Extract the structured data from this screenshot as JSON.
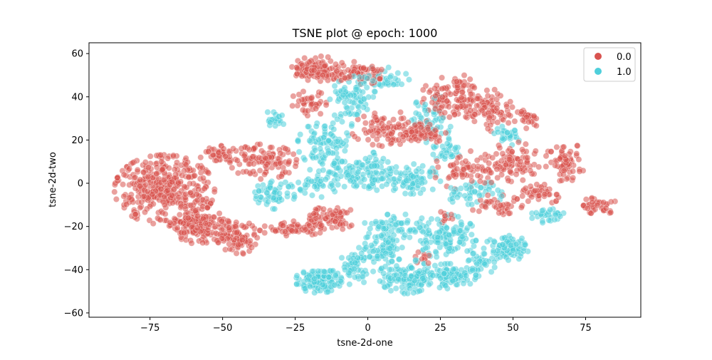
{
  "chart_data": {
    "type": "scatter",
    "title": "TSNE plot @ epoch: 1000",
    "xlabel": "tsne-2d-one",
    "ylabel": "tsne-2d-two",
    "xlim": [
      -96,
      94
    ],
    "ylim": [
      -62,
      65
    ],
    "xticks": [
      -75,
      -50,
      -25,
      0,
      25,
      50,
      75
    ],
    "yticks": [
      -60,
      -40,
      -20,
      0,
      20,
      40,
      60
    ],
    "xtick_labels": [
      "−75",
      "−50",
      "−25",
      "0",
      "25",
      "50",
      "75"
    ],
    "ytick_labels": [
      "−60",
      "−40",
      "−20",
      "0",
      "20",
      "40",
      "60"
    ],
    "legend": {
      "placement": "top-right",
      "entries": [
        "0.0",
        "1.0"
      ]
    },
    "colors": {
      "0.0": "#d9534f",
      "1.0": "#4fcfdb"
    },
    "point_alpha": 0.55,
    "series": [
      {
        "name": "0.0",
        "clusters": [
          {
            "cx": -70,
            "cy": -3,
            "rx": 15,
            "ry": 14,
            "n": 380
          },
          {
            "cx": -58,
            "cy": -20,
            "rx": 9,
            "ry": 7,
            "n": 150
          },
          {
            "cx": -45,
            "cy": -25,
            "rx": 6,
            "ry": 7,
            "n": 90
          },
          {
            "cx": -52,
            "cy": 14,
            "rx": 6,
            "ry": 3,
            "n": 40
          },
          {
            "cx": -36,
            "cy": 10,
            "rx": 10,
            "ry": 7,
            "n": 110
          },
          {
            "cx": -26,
            "cy": -21,
            "rx": 10,
            "ry": 3,
            "n": 60
          },
          {
            "cx": -12,
            "cy": -16,
            "rx": 7,
            "ry": 5,
            "n": 80
          },
          {
            "cx": -17,
            "cy": 53,
            "rx": 8,
            "ry": 5,
            "n": 110
          },
          {
            "cx": -3,
            "cy": 51,
            "rx": 7,
            "ry": 5,
            "n": 70
          },
          {
            "cx": -20,
            "cy": 37,
            "rx": 6,
            "ry": 5,
            "n": 40
          },
          {
            "cx": 8,
            "cy": 25,
            "rx": 12,
            "ry": 7,
            "n": 110
          },
          {
            "cx": 30,
            "cy": 40,
            "rx": 10,
            "ry": 9,
            "n": 130
          },
          {
            "cx": 20,
            "cy": 23,
            "rx": 6,
            "ry": 4,
            "n": 50
          },
          {
            "cx": 43,
            "cy": 33,
            "rx": 6,
            "ry": 9,
            "n": 60
          },
          {
            "cx": 34,
            "cy": 6,
            "rx": 10,
            "ry": 8,
            "n": 70
          },
          {
            "cx": 50,
            "cy": 10,
            "rx": 8,
            "ry": 8,
            "n": 80
          },
          {
            "cx": 55,
            "cy": 30,
            "rx": 4,
            "ry": 4,
            "n": 30
          },
          {
            "cx": 68,
            "cy": 10,
            "rx": 6,
            "ry": 8,
            "n": 70
          },
          {
            "cx": 80,
            "cy": -10,
            "rx": 5,
            "ry": 4,
            "n": 40
          },
          {
            "cx": 60,
            "cy": -5,
            "rx": 6,
            "ry": 4,
            "n": 40
          },
          {
            "cx": 44,
            "cy": -10,
            "rx": 8,
            "ry": 4,
            "n": 40
          },
          {
            "cx": 18,
            "cy": -35,
            "rx": 3,
            "ry": 3,
            "n": 10
          },
          {
            "cx": 26,
            "cy": -15,
            "rx": 3,
            "ry": 3,
            "n": 10
          }
        ]
      },
      {
        "name": "1.0",
        "clusters": [
          {
            "cx": -32,
            "cy": 30,
            "rx": 4,
            "ry": 3,
            "n": 20
          },
          {
            "cx": -32,
            "cy": -5,
            "rx": 6,
            "ry": 6,
            "n": 60
          },
          {
            "cx": -17,
            "cy": 0,
            "rx": 6,
            "ry": 6,
            "n": 50
          },
          {
            "cx": -15,
            "cy": 18,
            "rx": 8,
            "ry": 9,
            "n": 90
          },
          {
            "cx": -6,
            "cy": 5,
            "rx": 6,
            "ry": 6,
            "n": 50
          },
          {
            "cx": -5,
            "cy": 38,
            "rx": 7,
            "ry": 10,
            "n": 80
          },
          {
            "cx": 5,
            "cy": 48,
            "rx": 8,
            "ry": 5,
            "n": 40
          },
          {
            "cx": 2,
            "cy": 5,
            "rx": 5,
            "ry": 8,
            "n": 60
          },
          {
            "cx": 15,
            "cy": 2,
            "rx": 9,
            "ry": 6,
            "n": 80
          },
          {
            "cx": 10,
            "cy": -20,
            "rx": 10,
            "ry": 5,
            "n": 60
          },
          {
            "cx": -17,
            "cy": -45,
            "rx": 7,
            "ry": 5,
            "n": 120
          },
          {
            "cx": -5,
            "cy": -40,
            "rx": 6,
            "ry": 6,
            "n": 50
          },
          {
            "cx": 5,
            "cy": -30,
            "rx": 7,
            "ry": 6,
            "n": 70
          },
          {
            "cx": 13,
            "cy": -43,
            "rx": 8,
            "ry": 7,
            "n": 120
          },
          {
            "cx": 27,
            "cy": -25,
            "rx": 9,
            "ry": 9,
            "n": 120
          },
          {
            "cx": 28,
            "cy": -43,
            "rx": 8,
            "ry": 5,
            "n": 80
          },
          {
            "cx": 38,
            "cy": -38,
            "rx": 5,
            "ry": 5,
            "n": 40
          },
          {
            "cx": 48,
            "cy": -30,
            "rx": 7,
            "ry": 5,
            "n": 80
          },
          {
            "cx": 37,
            "cy": -5,
            "rx": 8,
            "ry": 6,
            "n": 50
          },
          {
            "cx": 48,
            "cy": 22,
            "rx": 4,
            "ry": 4,
            "n": 30
          },
          {
            "cx": 62,
            "cy": -15,
            "rx": 5,
            "ry": 3,
            "n": 30
          },
          {
            "cx": 22,
            "cy": 30,
            "rx": 6,
            "ry": 10,
            "n": 50
          },
          {
            "cx": 28,
            "cy": 15,
            "rx": 5,
            "ry": 5,
            "n": 30
          }
        ]
      }
    ]
  }
}
